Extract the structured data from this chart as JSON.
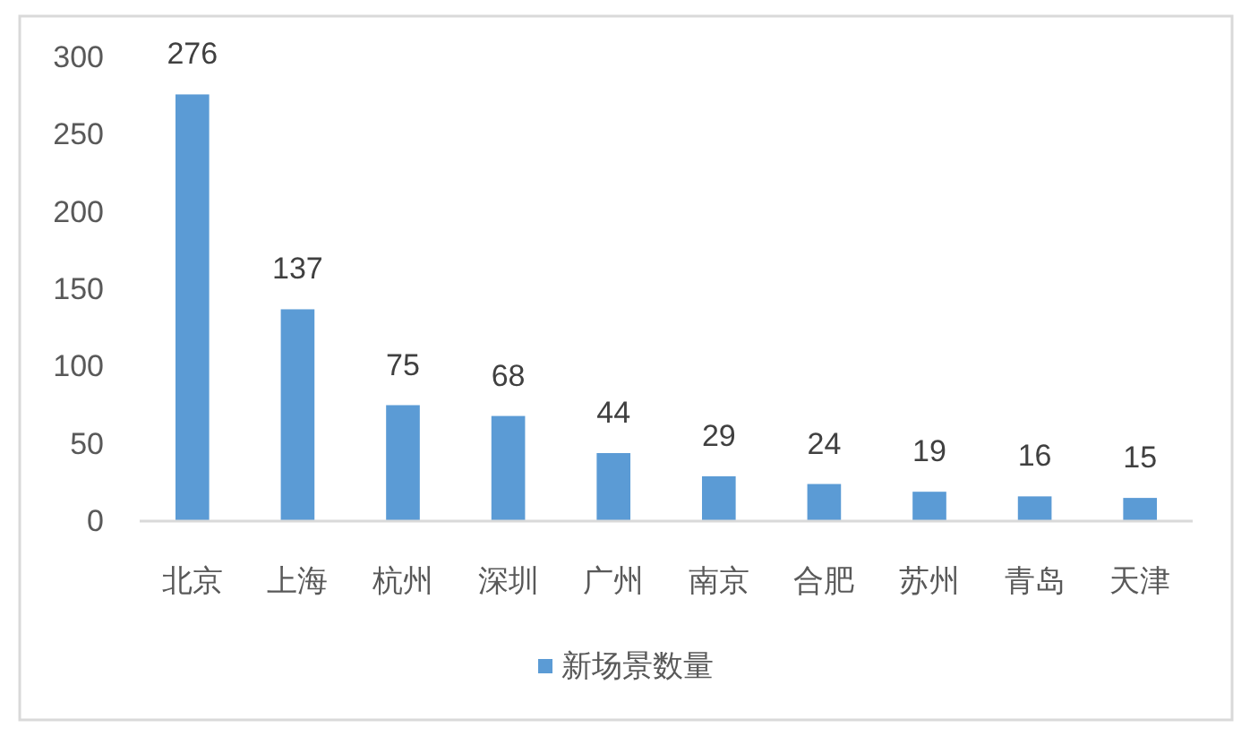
{
  "chart_data": {
    "type": "bar",
    "categories": [
      "北京",
      "上海",
      "杭州",
      "深圳",
      "广州",
      "南京",
      "合肥",
      "苏州",
      "青岛",
      "天津"
    ],
    "series": [
      {
        "name": "新场景数量",
        "color": "#5b9bd5",
        "values": [
          276,
          137,
          75,
          68,
          44,
          29,
          24,
          19,
          16,
          15
        ]
      }
    ],
    "ylim": [
      0,
      300
    ],
    "yticks": [
      0,
      50,
      100,
      150,
      200,
      250,
      300
    ],
    "data_labels": true,
    "legend": "bottom"
  }
}
